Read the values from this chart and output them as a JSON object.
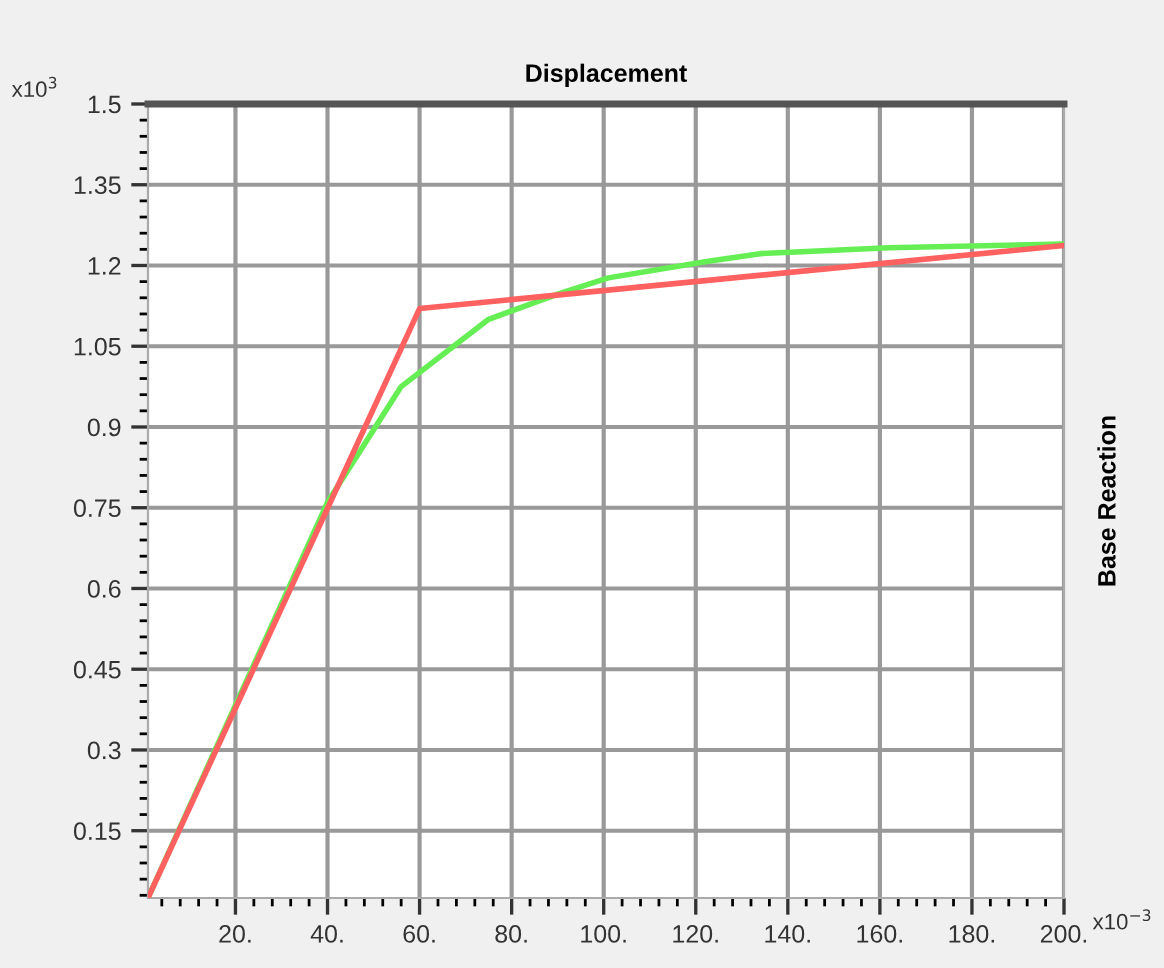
{
  "chart_data": {
    "type": "line",
    "title": "Displacement",
    "ylabel": "Base Reaction",
    "annotations": [
      "x10$^{3}$",
      "x10$^{−3}$"
    ],
    "series": [
      {
        "color": "#66ee55",
        "x": [
          1,
          40,
          56,
          75,
          90,
          101,
          122,
          134,
          162,
          200
        ],
        "values": [
          0.025,
          0.76,
          0.975,
          1.1,
          1.147,
          1.177,
          1.207,
          1.222,
          1.233,
          1.24
        ]
      },
      {
        "color": "#ff6060",
        "x": [
          1,
          60,
          200
        ],
        "values": [
          0.025,
          1.12,
          1.237
        ]
      }
    ],
    "xlim": [
      1,
      200
    ],
    "ylim": [
      0.025,
      1.5
    ],
    "xticks": [
      {
        "value": 20,
        "label": "20."
      },
      {
        "value": 40,
        "label": "40."
      },
      {
        "value": 60,
        "label": "60."
      },
      {
        "value": 80,
        "label": "80."
      },
      {
        "value": 100,
        "label": "100."
      },
      {
        "value": 120,
        "label": "120."
      },
      {
        "value": 140,
        "label": "140."
      },
      {
        "value": 160,
        "label": "160."
      },
      {
        "value": 180,
        "label": "180."
      },
      {
        "value": 200,
        "label": "200."
      }
    ],
    "yticks": [
      0.15,
      0.3,
      0.45,
      0.6,
      0.75,
      0.9,
      1.05,
      1.2,
      1.35,
      1.5
    ],
    "grid": true,
    "marker": "none",
    "line_style": "solid"
  }
}
